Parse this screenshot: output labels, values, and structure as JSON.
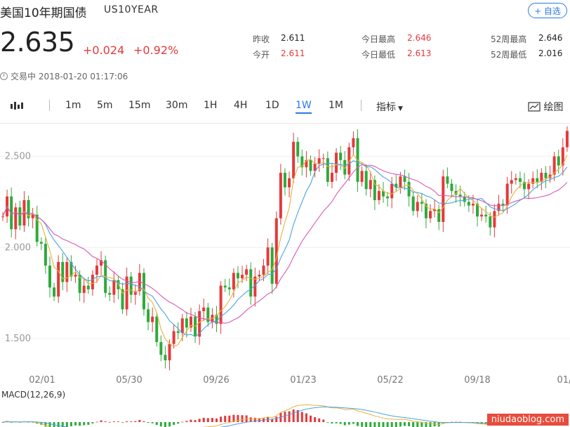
{
  "header": {
    "title": "美国10年期国债",
    "ticker": "US10YEAR",
    "add_label": "+ 自选",
    "price": "2.635",
    "change": "+0.024",
    "change_pct": "+0.92%",
    "status": "交易中 2018-01-20 01:17:06",
    "accent": "#2a7be4",
    "up_color": "#e4393c",
    "down_color": "#2eaa3c"
  },
  "stats": {
    "prev_close_label": "昨收",
    "prev_close": "2.611",
    "open_label": "今开",
    "open": "2.611",
    "day_high_label": "今日最高",
    "day_high": "2.646",
    "day_low_label": "今日最低",
    "day_low": "2.613",
    "w52_high_label": "52周最高",
    "w52_high": "2.646",
    "w52_low_label": "52周最低",
    "w52_low": "2.016"
  },
  "toolbar": {
    "intervals": [
      "1m",
      "5m",
      "15m",
      "30m",
      "1H",
      "4H",
      "1D",
      "1W",
      "1M"
    ],
    "active": "1W",
    "indicator_label": "指标",
    "draw_label": "绘图"
  },
  "chart_data": {
    "type": "candlestick",
    "y_ticks": [
      "2.500",
      "2.000",
      "1.500"
    ],
    "ylim": [
      1.33,
      2.68
    ],
    "x_tick_labels": [
      "02/01",
      "05/30",
      "09/26",
      "01/23",
      "05/22",
      "09/18",
      "01/"
    ],
    "interval": "1W",
    "close_series": [
      2.17,
      2.28,
      2.1,
      2.22,
      2.12,
      2.26,
      2.16,
      2.18,
      2.03,
      2.02,
      1.9,
      1.78,
      1.73,
      1.92,
      1.81,
      1.92,
      1.84,
      1.85,
      1.75,
      1.79,
      1.77,
      1.85,
      1.9,
      1.93,
      1.75,
      1.74,
      1.82,
      1.77,
      1.66,
      1.84,
      1.74,
      1.76,
      1.86,
      1.66,
      1.59,
      1.62,
      1.48,
      1.41,
      1.38,
      1.47,
      1.54,
      1.53,
      1.61,
      1.56,
      1.62,
      1.51,
      1.65,
      1.67,
      1.59,
      1.63,
      1.58,
      1.79,
      1.78,
      1.77,
      1.86,
      1.83,
      1.85,
      1.88,
      1.73,
      1.84,
      1.85,
      1.9,
      2.0,
      1.8,
      2.16,
      2.41,
      2.33,
      2.38,
      2.58,
      2.5,
      2.44,
      2.48,
      2.42,
      2.46,
      2.49,
      2.49,
      2.36,
      2.41,
      2.52,
      2.48,
      2.4,
      2.55,
      2.6,
      2.36,
      2.42,
      2.32,
      2.37,
      2.26,
      2.31,
      2.28,
      2.27,
      2.35,
      2.33,
      2.39,
      2.36,
      2.28,
      2.2,
      2.25,
      2.24,
      2.16,
      2.2,
      2.21,
      2.14,
      2.39,
      2.35,
      2.31,
      2.29,
      2.28,
      2.25,
      2.23,
      2.24,
      2.17,
      2.18,
      2.17,
      2.11,
      2.2,
      2.24,
      2.23,
      2.35,
      2.37,
      2.38,
      2.36,
      2.32,
      2.35,
      2.38,
      2.36,
      2.41,
      2.38,
      2.4,
      2.5,
      2.45,
      2.55,
      2.64
    ],
    "ma_labels": [],
    "macd_label": "MACD(12,26,9)"
  },
  "watermark": "niudaoblog.com"
}
